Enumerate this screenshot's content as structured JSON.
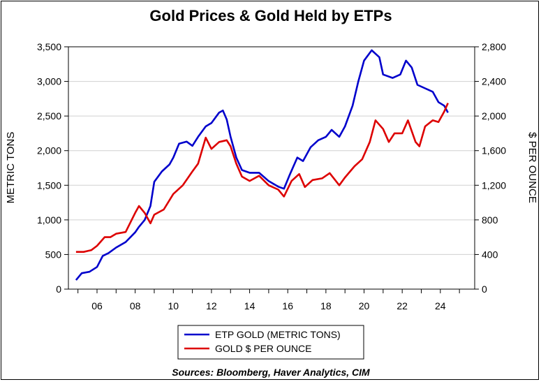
{
  "chart_data": {
    "type": "line",
    "title": "Gold Prices & Gold Held by ETPs",
    "ylabel_left": "METRIC TONS",
    "ylabel_right": "$ PER OUNCE",
    "source": "Sources:  Bloomberg, Haver Analytics, CIM",
    "x_ticks": [
      "06",
      "08",
      "10",
      "12",
      "14",
      "16",
      "18",
      "20",
      "22",
      "24"
    ],
    "y_left_ticks": [
      "0",
      "500",
      "1,000",
      "1,500",
      "2,000",
      "2,500",
      "3,000",
      "3,500"
    ],
    "y_right_ticks": [
      "0",
      "400",
      "800",
      "1,200",
      "1,600",
      "2,000",
      "2,400",
      "2,800"
    ],
    "y_left_range": [
      0,
      3500
    ],
    "y_right_range": [
      0,
      2800
    ],
    "x_range": [
      2004.5,
      2025.8
    ],
    "grid": "horizontal",
    "legend_position": "bottom-center",
    "series": [
      {
        "name": "ETP GOLD (METRIC TONS)",
        "axis": "left",
        "color": "#0000cc",
        "points": [
          [
            2004.9,
            130
          ],
          [
            2005.2,
            230
          ],
          [
            2005.6,
            250
          ],
          [
            2006.0,
            320
          ],
          [
            2006.3,
            480
          ],
          [
            2006.6,
            520
          ],
          [
            2007.0,
            600
          ],
          [
            2007.5,
            680
          ],
          [
            2008.0,
            820
          ],
          [
            2008.2,
            900
          ],
          [
            2008.5,
            1000
          ],
          [
            2008.8,
            1200
          ],
          [
            2009.0,
            1550
          ],
          [
            2009.4,
            1700
          ],
          [
            2009.8,
            1800
          ],
          [
            2010.0,
            1900
          ],
          [
            2010.3,
            2100
          ],
          [
            2010.7,
            2130
          ],
          [
            2011.0,
            2070
          ],
          [
            2011.3,
            2200
          ],
          [
            2011.7,
            2350
          ],
          [
            2012.0,
            2400
          ],
          [
            2012.4,
            2550
          ],
          [
            2012.6,
            2580
          ],
          [
            2012.8,
            2450
          ],
          [
            2013.0,
            2200
          ],
          [
            2013.3,
            1900
          ],
          [
            2013.6,
            1720
          ],
          [
            2014.0,
            1680
          ],
          [
            2014.5,
            1680
          ],
          [
            2015.0,
            1560
          ],
          [
            2015.5,
            1480
          ],
          [
            2015.8,
            1450
          ],
          [
            2016.1,
            1650
          ],
          [
            2016.5,
            1900
          ],
          [
            2016.8,
            1850
          ],
          [
            2017.2,
            2050
          ],
          [
            2017.6,
            2150
          ],
          [
            2018.0,
            2200
          ],
          [
            2018.3,
            2300
          ],
          [
            2018.7,
            2200
          ],
          [
            2019.0,
            2350
          ],
          [
            2019.4,
            2650
          ],
          [
            2019.7,
            3000
          ],
          [
            2020.0,
            3300
          ],
          [
            2020.4,
            3450
          ],
          [
            2020.8,
            3350
          ],
          [
            2021.0,
            3100
          ],
          [
            2021.5,
            3050
          ],
          [
            2021.9,
            3100
          ],
          [
            2022.2,
            3300
          ],
          [
            2022.5,
            3200
          ],
          [
            2022.8,
            2950
          ],
          [
            2023.2,
            2900
          ],
          [
            2023.6,
            2850
          ],
          [
            2023.9,
            2700
          ],
          [
            2024.2,
            2650
          ],
          [
            2024.4,
            2550
          ]
        ]
      },
      {
        "name": "GOLD $ PER OUNCE",
        "axis": "right",
        "color": "#dd0000",
        "points": [
          [
            2004.9,
            430
          ],
          [
            2005.3,
            430
          ],
          [
            2005.7,
            450
          ],
          [
            2006.0,
            500
          ],
          [
            2006.4,
            600
          ],
          [
            2006.7,
            600
          ],
          [
            2007.0,
            640
          ],
          [
            2007.5,
            660
          ],
          [
            2008.0,
            880
          ],
          [
            2008.2,
            960
          ],
          [
            2008.5,
            880
          ],
          [
            2008.8,
            760
          ],
          [
            2009.0,
            860
          ],
          [
            2009.5,
            920
          ],
          [
            2010.0,
            1100
          ],
          [
            2010.5,
            1200
          ],
          [
            2011.0,
            1360
          ],
          [
            2011.3,
            1450
          ],
          [
            2011.7,
            1750
          ],
          [
            2012.0,
            1620
          ],
          [
            2012.4,
            1700
          ],
          [
            2012.8,
            1720
          ],
          [
            2013.0,
            1650
          ],
          [
            2013.3,
            1450
          ],
          [
            2013.6,
            1300
          ],
          [
            2014.0,
            1250
          ],
          [
            2014.5,
            1310
          ],
          [
            2015.0,
            1200
          ],
          [
            2015.5,
            1150
          ],
          [
            2015.8,
            1070
          ],
          [
            2016.2,
            1250
          ],
          [
            2016.6,
            1330
          ],
          [
            2016.9,
            1180
          ],
          [
            2017.3,
            1260
          ],
          [
            2017.8,
            1280
          ],
          [
            2018.2,
            1340
          ],
          [
            2018.7,
            1200
          ],
          [
            2019.0,
            1290
          ],
          [
            2019.5,
            1420
          ],
          [
            2019.9,
            1500
          ],
          [
            2020.3,
            1700
          ],
          [
            2020.6,
            1950
          ],
          [
            2021.0,
            1850
          ],
          [
            2021.3,
            1700
          ],
          [
            2021.6,
            1800
          ],
          [
            2022.0,
            1800
          ],
          [
            2022.3,
            1950
          ],
          [
            2022.7,
            1700
          ],
          [
            2022.9,
            1650
          ],
          [
            2023.2,
            1880
          ],
          [
            2023.6,
            1950
          ],
          [
            2023.9,
            1930
          ],
          [
            2024.2,
            2050
          ],
          [
            2024.4,
            2150
          ]
        ]
      }
    ]
  }
}
